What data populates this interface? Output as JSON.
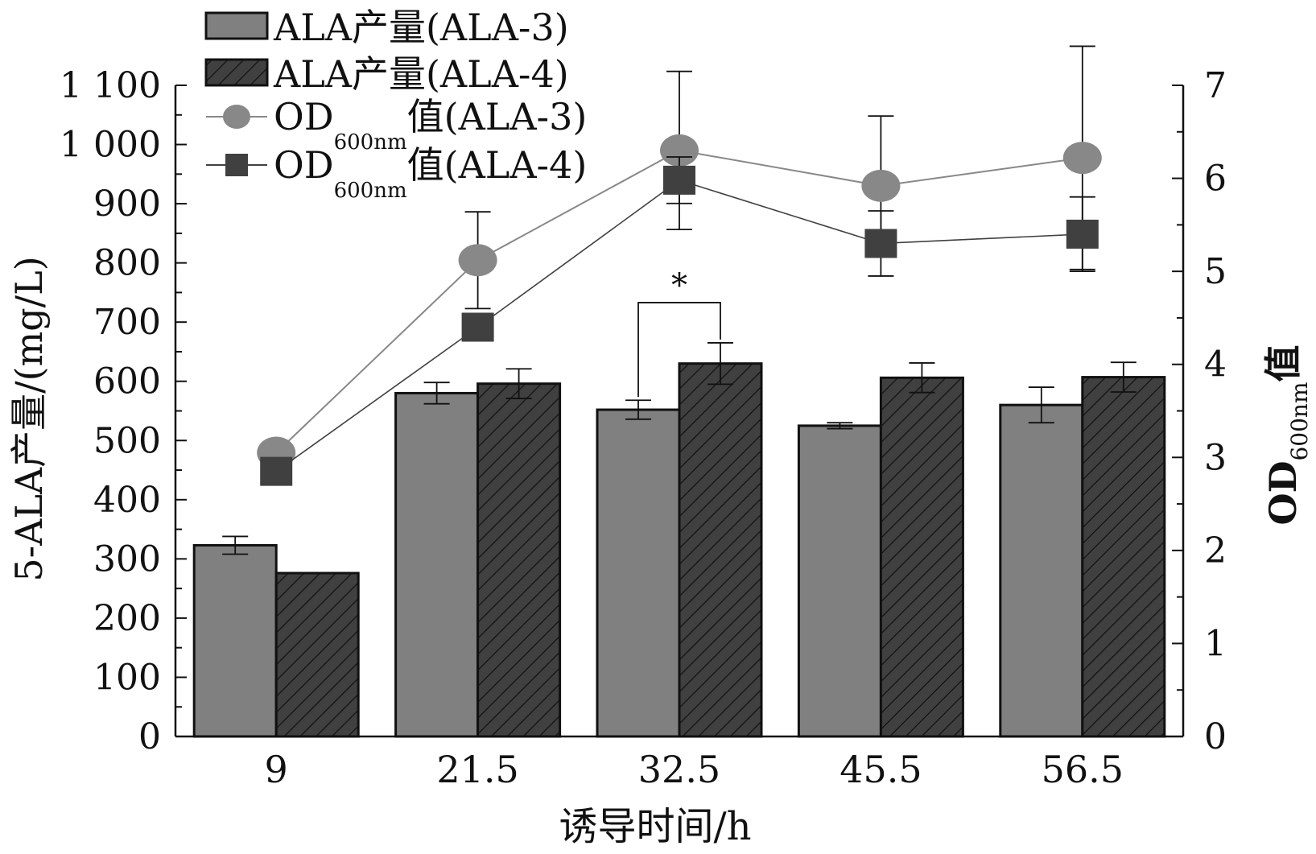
{
  "chart_data": {
    "type": "bar",
    "xlabel": "诱导时间/h",
    "ylabel_left": "5-ALA产量/(mg/L)",
    "ylabel_right": {
      "main": "OD",
      "sub": "600nm",
      "tail": "值"
    },
    "categories": [
      "9",
      "21.5",
      "32.5",
      "45.5",
      "56.5"
    ],
    "ylim_left": [
      0,
      1100
    ],
    "yticks_left": [
      0,
      100,
      200,
      300,
      400,
      500,
      600,
      700,
      800,
      900,
      1000,
      1100
    ],
    "yticklabels_left": [
      "0",
      "100",
      "200",
      "300",
      "400",
      "500",
      "600",
      "700",
      "800",
      "900",
      "1 000",
      "1 100"
    ],
    "ylim_right": [
      0,
      7
    ],
    "yticks_right": [
      0,
      1,
      2,
      3,
      4,
      5,
      6,
      7
    ],
    "yticklabels_right": [
      "0",
      "1",
      "2",
      "3",
      "4",
      "5",
      "6",
      "7"
    ],
    "bar_series": [
      {
        "name": "ALA产量(ALA-3)",
        "color": "#808080",
        "pattern": "solid",
        "values": [
          323,
          580,
          552,
          525,
          560
        ],
        "errors": [
          15,
          18,
          16,
          5,
          30
        ]
      },
      {
        "name": "ALA产量(ALA-4)",
        "color": "#404040",
        "pattern": "hatch",
        "values": [
          276,
          596,
          630,
          606,
          607
        ],
        "errors": [
          0,
          25,
          35,
          25,
          25
        ]
      }
    ],
    "line_series": [
      {
        "name": "OD600nm值(ALA-3)",
        "color": "#888888",
        "marker": "circle",
        "values": [
          3.05,
          5.12,
          6.3,
          5.92,
          6.22
        ],
        "errors": [
          0.0,
          0.52,
          0.85,
          0.75,
          1.2
        ]
      },
      {
        "name": "OD600nm值(ALA-4)",
        "color": "#404040",
        "marker": "square",
        "values": [
          2.85,
          4.4,
          5.98,
          5.3,
          5.4
        ],
        "errors": [
          0.0,
          0.0,
          0.25,
          0.35,
          0.4
        ]
      }
    ],
    "legend": {
      "position": "top-left",
      "items": [
        {
          "text": "ALA产量(ALA-3)"
        },
        {
          "text": "ALA产量(ALA-4)"
        },
        {
          "main": "OD",
          "sub": "600nm",
          "tail": "值(ALA-3)"
        },
        {
          "main": "OD",
          "sub": "600nm",
          "tail": "值(ALA-4)"
        }
      ]
    },
    "annotations": [
      {
        "text": "*",
        "between": [
          "ALA-3",
          "ALA-4"
        ],
        "category": "32.5"
      }
    ]
  }
}
